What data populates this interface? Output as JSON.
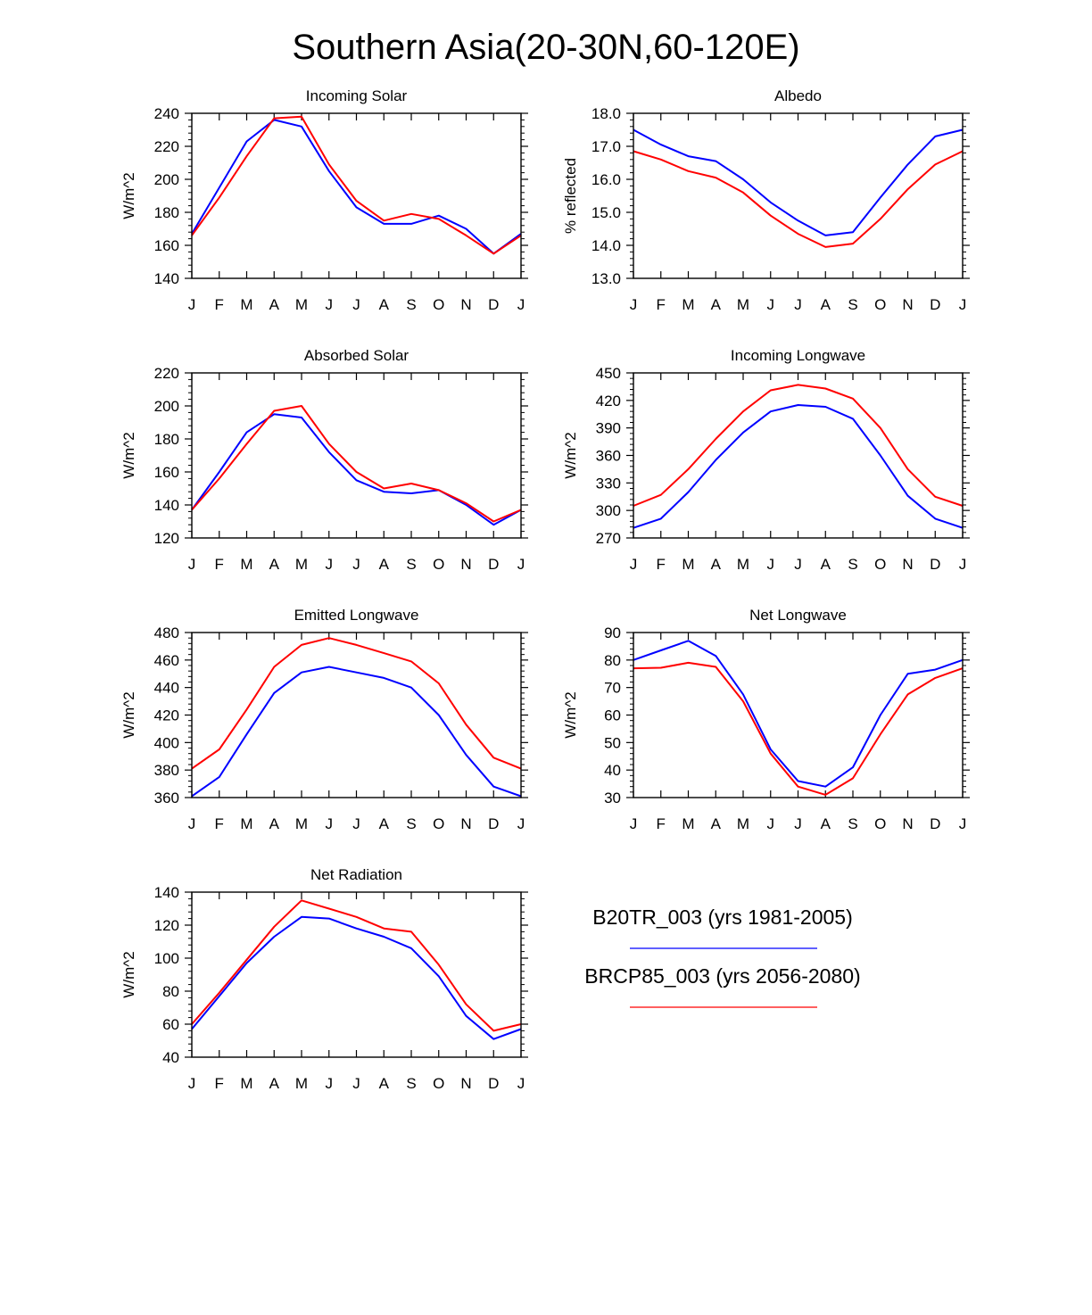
{
  "page": {
    "title": "Southern Asia(20-30N,60-120E)"
  },
  "legend": {
    "entries": [
      {
        "label": "B20TR_003 (yrs 1981-2005)",
        "color": "#0000ff"
      },
      {
        "label": "BRCP85_003 (yrs 2056-2080)",
        "color": "#ff0000"
      }
    ]
  },
  "chart_data": [
    {
      "type": "line",
      "title": "Incoming Solar",
      "ylabel": "W/m^2",
      "xlabel": "",
      "categories": [
        "J",
        "F",
        "M",
        "A",
        "M",
        "J",
        "J",
        "A",
        "S",
        "O",
        "N",
        "D",
        "J"
      ],
      "ylim": [
        140,
        240
      ],
      "yticks": [
        140,
        160,
        180,
        200,
        220,
        240
      ],
      "ytick_labels": [
        "140",
        "160",
        "180",
        "200",
        "220",
        "240"
      ],
      "series": [
        {
          "name": "B20TR_003 (yrs 1981-2005)",
          "color": "#0000ff",
          "values": [
            167,
            195,
            223,
            236,
            232,
            205,
            183,
            173,
            173,
            178,
            170,
            155,
            167
          ]
        },
        {
          "name": "BRCP85_003 (yrs 2056-2080)",
          "color": "#ff0000",
          "values": [
            166,
            189,
            214,
            237,
            238,
            209,
            187,
            175,
            179,
            176,
            166,
            155,
            166
          ]
        }
      ]
    },
    {
      "type": "line",
      "title": "Albedo",
      "ylabel": "% reflected",
      "xlabel": "",
      "categories": [
        "J",
        "F",
        "M",
        "A",
        "M",
        "J",
        "J",
        "A",
        "S",
        "O",
        "N",
        "D",
        "J"
      ],
      "ylim": [
        13.0,
        18.0
      ],
      "yticks": [
        13,
        14,
        15,
        16,
        17,
        18
      ],
      "ytick_labels": [
        "13.0",
        "14.0",
        "15.0",
        "16.0",
        "17.0",
        "18.0"
      ],
      "series": [
        {
          "name": "B20TR_003 (yrs 1981-2005)",
          "color": "#0000ff",
          "values": [
            17.5,
            17.05,
            16.7,
            16.55,
            16.0,
            15.3,
            14.75,
            14.3,
            14.4,
            15.45,
            16.45,
            17.3,
            17.5
          ]
        },
        {
          "name": "BRCP85_003 (yrs 2056-2080)",
          "color": "#ff0000",
          "values": [
            16.85,
            16.6,
            16.25,
            16.05,
            15.6,
            14.9,
            14.35,
            13.95,
            14.05,
            14.8,
            15.7,
            16.45,
            16.85
          ]
        }
      ]
    },
    {
      "type": "line",
      "title": "Absorbed Solar",
      "ylabel": "W/m^2",
      "xlabel": "",
      "categories": [
        "J",
        "F",
        "M",
        "A",
        "M",
        "J",
        "J",
        "A",
        "S",
        "O",
        "N",
        "D",
        "J"
      ],
      "ylim": [
        120,
        220
      ],
      "yticks": [
        120,
        140,
        160,
        180,
        200,
        220
      ],
      "ytick_labels": [
        "120",
        "140",
        "160",
        "180",
        "200",
        "220"
      ],
      "series": [
        {
          "name": "B20TR_003 (yrs 1981-2005)",
          "color": "#0000ff",
          "values": [
            137,
            160,
            184,
            195,
            193,
            172,
            155,
            148,
            147,
            149,
            140,
            128,
            137
          ]
        },
        {
          "name": "BRCP85_003 (yrs 2056-2080)",
          "color": "#ff0000",
          "values": [
            137,
            156,
            177,
            197,
            200,
            177,
            160,
            150,
            153,
            149,
            141,
            130,
            137
          ]
        }
      ]
    },
    {
      "type": "line",
      "title": "Incoming Longwave",
      "ylabel": "W/m^2",
      "xlabel": "",
      "categories": [
        "J",
        "F",
        "M",
        "A",
        "M",
        "J",
        "J",
        "A",
        "S",
        "O",
        "N",
        "D",
        "J"
      ],
      "ylim": [
        270,
        450
      ],
      "yticks": [
        270,
        300,
        330,
        360,
        390,
        420,
        450
      ],
      "ytick_labels": [
        "270",
        "300",
        "330",
        "360",
        "390",
        "420",
        "450"
      ],
      "series": [
        {
          "name": "B20TR_003 (yrs 1981-2005)",
          "color": "#0000ff",
          "values": [
            281,
            291,
            320,
            355,
            385,
            408,
            415,
            413,
            400,
            360,
            316,
            291,
            281
          ]
        },
        {
          "name": "BRCP85_003 (yrs 2056-2080)",
          "color": "#ff0000",
          "values": [
            305,
            317,
            345,
            378,
            408,
            431,
            437,
            433,
            422,
            390,
            345,
            315,
            305
          ]
        }
      ]
    },
    {
      "type": "line",
      "title": "Emitted Longwave",
      "ylabel": "W/m^2",
      "xlabel": "",
      "categories": [
        "J",
        "F",
        "M",
        "A",
        "M",
        "J",
        "J",
        "A",
        "S",
        "O",
        "N",
        "D",
        "J"
      ],
      "ylim": [
        360,
        480
      ],
      "yticks": [
        360,
        380,
        400,
        420,
        440,
        460,
        480
      ],
      "ytick_labels": [
        "360",
        "380",
        "400",
        "420",
        "440",
        "460",
        "480"
      ],
      "series": [
        {
          "name": "B20TR_003 (yrs 1981-2005)",
          "color": "#0000ff",
          "values": [
            361,
            375,
            406,
            436,
            451,
            455,
            451,
            447,
            440,
            420,
            391,
            368,
            361
          ]
        },
        {
          "name": "BRCP85_003 (yrs 2056-2080)",
          "color": "#ff0000",
          "values": [
            381,
            395,
            424,
            455,
            471,
            476,
            471,
            465,
            459,
            443,
            413,
            389,
            381
          ]
        }
      ]
    },
    {
      "type": "line",
      "title": "Net Longwave",
      "ylabel": "W/m^2",
      "xlabel": "",
      "categories": [
        "J",
        "F",
        "M",
        "A",
        "M",
        "J",
        "J",
        "A",
        "S",
        "O",
        "N",
        "D",
        "J"
      ],
      "ylim": [
        30,
        90
      ],
      "yticks": [
        30,
        40,
        50,
        60,
        70,
        80,
        90
      ],
      "ytick_labels": [
        "30",
        "40",
        "50",
        "60",
        "70",
        "80",
        "90"
      ],
      "series": [
        {
          "name": "B20TR_003 (yrs 1981-2005)",
          "color": "#0000ff",
          "values": [
            80,
            83.5,
            87,
            81.5,
            67.5,
            47.5,
            36,
            34,
            41,
            60,
            75,
            76.5,
            80
          ]
        },
        {
          "name": "BRCP85_003 (yrs 2056-2080)",
          "color": "#ff0000",
          "values": [
            77,
            77.2,
            79,
            77.5,
            65,
            46,
            34,
            31,
            37,
            53,
            67.5,
            73.5,
            77
          ]
        }
      ]
    },
    {
      "type": "line",
      "title": "Net Radiation",
      "ylabel": "W/m^2",
      "xlabel": "",
      "categories": [
        "J",
        "F",
        "M",
        "A",
        "M",
        "J",
        "J",
        "A",
        "S",
        "O",
        "N",
        "D",
        "J"
      ],
      "ylim": [
        40,
        140
      ],
      "yticks": [
        40,
        60,
        80,
        100,
        120,
        140
      ],
      "ytick_labels": [
        "40",
        "60",
        "80",
        "100",
        "120",
        "140"
      ],
      "series": [
        {
          "name": "B20TR_003 (yrs 1981-2005)",
          "color": "#0000ff",
          "values": [
            57,
            77,
            97,
            113,
            125,
            124,
            118,
            113,
            106,
            89,
            65,
            51,
            57
          ]
        },
        {
          "name": "BRCP85_003 (yrs 2056-2080)",
          "color": "#ff0000",
          "values": [
            60,
            79,
            99,
            119,
            135,
            130,
            125,
            118,
            116,
            96,
            72,
            56,
            60
          ]
        }
      ]
    }
  ]
}
